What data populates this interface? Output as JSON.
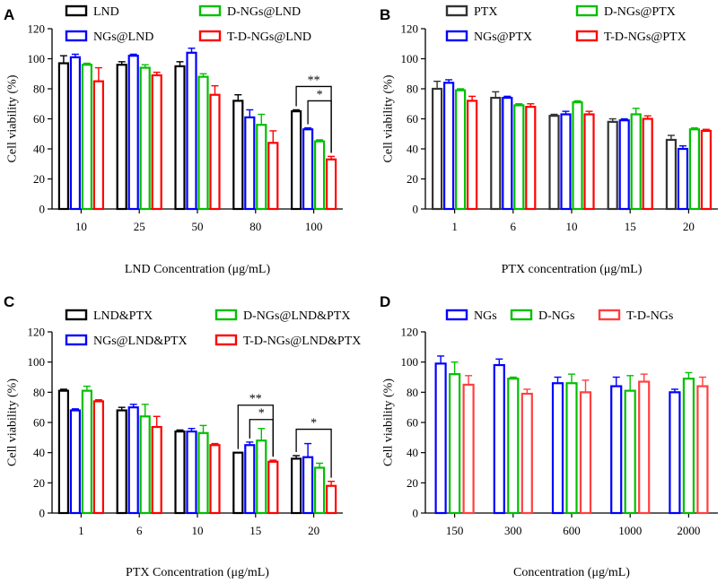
{
  "chart_data": [
    {
      "type": "bar",
      "panel": "A",
      "xlabel": "LND Concentration (μg/mL)",
      "ylabel": "Cell viability (%)",
      "ylim": [
        0,
        120
      ],
      "yticks": [
        "0",
        "20",
        "40",
        "60",
        "80",
        "100",
        "120"
      ],
      "categories": [
        "10",
        "25",
        "50",
        "80",
        "100"
      ],
      "series": [
        {
          "name": "LND",
          "color": "#000000",
          "values": [
            97,
            96,
            95,
            72,
            65
          ],
          "errors": [
            5,
            2,
            3,
            4,
            1
          ]
        },
        {
          "name": "NGs@LND",
          "color": "#0000ff",
          "values": [
            101,
            102,
            104,
            61,
            53
          ],
          "errors": [
            2,
            1,
            3,
            5,
            1
          ]
        },
        {
          "name": "D-NGs@LND",
          "color": "#00c000",
          "values": [
            96,
            94,
            88,
            56,
            45
          ],
          "errors": [
            1,
            2,
            2,
            7,
            1
          ]
        },
        {
          "name": "T-D-NGs@LND",
          "color": "#ff0000",
          "values": [
            85,
            89,
            76,
            44,
            33
          ],
          "errors": [
            9,
            2,
            6,
            8,
            2
          ]
        }
      ],
      "significance": [
        {
          "label": "**",
          "category": "100",
          "from_series": "LND",
          "to_series": "T-D-NGs@LND"
        },
        {
          "label": "*",
          "category": "100",
          "from_series": "NGs@LND",
          "to_series": "T-D-NGs@LND"
        }
      ]
    },
    {
      "type": "bar",
      "panel": "B",
      "xlabel": "PTX concentration (μg/mL)",
      "ylabel": "Cell viability (%)",
      "ylim": [
        0,
        120
      ],
      "yticks": [
        "0",
        "20",
        "40",
        "60",
        "80",
        "100",
        "120"
      ],
      "categories": [
        "1",
        "6",
        "10",
        "15",
        "20"
      ],
      "series": [
        {
          "name": "PTX",
          "color": "#333333",
          "values": [
            80,
            74,
            62,
            58,
            46
          ],
          "errors": [
            5,
            4,
            1,
            2,
            3
          ]
        },
        {
          "name": "NGs@PTX",
          "color": "#0000ff",
          "values": [
            84,
            74,
            63,
            59,
            40
          ],
          "errors": [
            2,
            1,
            2,
            1,
            2
          ]
        },
        {
          "name": "D-NGs@PTX",
          "color": "#00c000",
          "values": [
            79,
            69,
            71,
            63,
            53
          ],
          "errors": [
            1,
            1,
            1,
            4,
            1
          ]
        },
        {
          "name": "T-D-NGs@PTX",
          "color": "#ff0000",
          "values": [
            72,
            68,
            63,
            60,
            52
          ],
          "errors": [
            3,
            2,
            2,
            2,
            1
          ]
        }
      ],
      "significance": []
    },
    {
      "type": "bar",
      "panel": "C",
      "xlabel": "PTX Concentration (μg/mL)",
      "ylabel": "Cell viability (%)",
      "ylim": [
        0,
        120
      ],
      "yticks": [
        "0",
        "20",
        "40",
        "60",
        "80",
        "100",
        "120"
      ],
      "categories": [
        "1",
        "6",
        "10",
        "15",
        "20"
      ],
      "series": [
        {
          "name": "LND&PTX",
          "color": "#000000",
          "values": [
            81,
            68,
            54,
            40,
            36
          ],
          "errors": [
            1,
            2,
            1,
            0,
            2
          ]
        },
        {
          "name": "NGs@LND&PTX",
          "color": "#0000ff",
          "values": [
            68,
            70,
            54,
            45,
            37
          ],
          "errors": [
            1,
            2,
            2,
            2,
            9
          ]
        },
        {
          "name": "D-NGs@LND&PTX",
          "color": "#00c000",
          "values": [
            81,
            64,
            53,
            48,
            30
          ],
          "errors": [
            3,
            8,
            5,
            8,
            3
          ]
        },
        {
          "name": "T-D-NGs@LND&PTX",
          "color": "#ff0000",
          "values": [
            74,
            57,
            45,
            34,
            18
          ],
          "errors": [
            1,
            7,
            1,
            1,
            3
          ]
        }
      ],
      "significance": [
        {
          "label": "**",
          "category": "15",
          "from_series": "LND&PTX",
          "to_series": "T-D-NGs@LND&PTX"
        },
        {
          "label": "*",
          "category": "15",
          "from_series": "NGs@LND&PTX",
          "to_series": "T-D-NGs@LND&PTX"
        },
        {
          "label": "*",
          "category": "20",
          "from_series": "LND&PTX",
          "to_series": "T-D-NGs@LND&PTX"
        }
      ]
    },
    {
      "type": "bar",
      "panel": "D",
      "xlabel": "Concentration (μg/mL)",
      "ylabel": "Cell viability (%)",
      "ylim": [
        0,
        120
      ],
      "yticks": [
        "0",
        "20",
        "40",
        "60",
        "80",
        "100",
        "120"
      ],
      "categories": [
        "150",
        "300",
        "600",
        "1000",
        "2000"
      ],
      "series": [
        {
          "name": "NGs",
          "color": "#0000ff",
          "values": [
            99,
            98,
            86,
            84,
            80
          ],
          "errors": [
            5,
            4,
            4,
            6,
            2
          ]
        },
        {
          "name": "D-NGs",
          "color": "#00c000",
          "values": [
            92,
            89,
            86,
            81,
            89
          ],
          "errors": [
            8,
            1,
            6,
            10,
            4
          ]
        },
        {
          "name": "T-D-NGs",
          "color": "#ff4040",
          "values": [
            85,
            79,
            80,
            87,
            84
          ],
          "errors": [
            6,
            3,
            8,
            5,
            6
          ]
        }
      ],
      "significance": []
    }
  ]
}
